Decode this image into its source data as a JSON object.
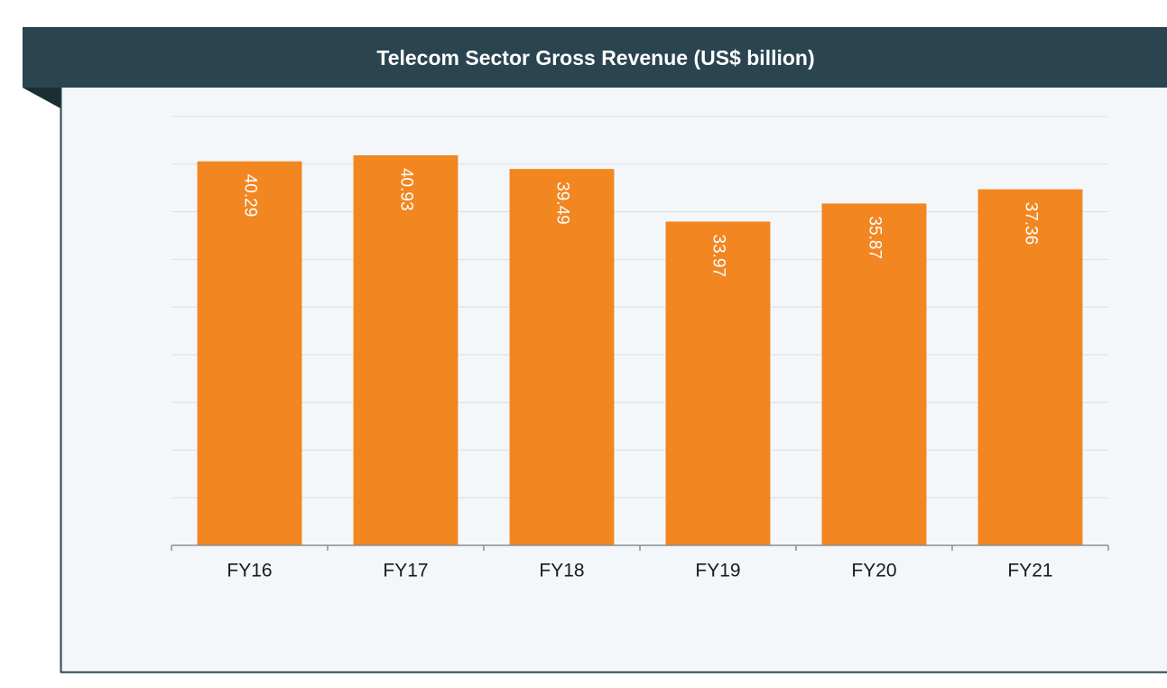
{
  "chart_data": {
    "type": "bar",
    "title": "Telecom Sector Gross Revenue (US$ billion)",
    "categories": [
      "FY16",
      "FY17",
      "FY18",
      "FY19",
      "FY20",
      "FY21"
    ],
    "values": [
      40.29,
      40.93,
      39.49,
      33.97,
      35.87,
      37.36
    ],
    "color": "#f28621",
    "ylim": [
      0,
      45
    ],
    "yticks": [
      0,
      5,
      10,
      15,
      20,
      25,
      30,
      35,
      40,
      45
    ],
    "grid": true
  }
}
